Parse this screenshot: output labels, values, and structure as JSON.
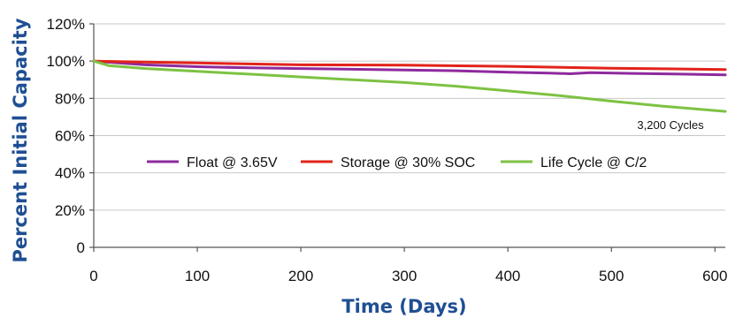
{
  "chart_data": {
    "type": "line",
    "xlabel": "Time (Days)",
    "ylabel": "Percent Initial Capacity",
    "xlim": [
      0,
      610
    ],
    "ylim": [
      0,
      120
    ],
    "x_ticks": [
      0,
      100,
      200,
      300,
      400,
      500,
      600
    ],
    "y_ticks": [
      0,
      20,
      40,
      60,
      80,
      100,
      120
    ],
    "x_tick_labels": [
      "0",
      "100",
      "200",
      "300",
      "400",
      "500",
      "600"
    ],
    "y_tick_labels": [
      "0",
      "20%",
      "40%",
      "60%",
      "80%",
      "100%",
      "120%"
    ],
    "grid": true,
    "legend_position": "center",
    "annotation": {
      "text": "3,200 Cycles",
      "x": 600,
      "y": 73
    },
    "series": [
      {
        "name": "Float @ 3.65V",
        "color": "#8e2a9e",
        "x": [
          0,
          50,
          100,
          150,
          200,
          250,
          300,
          350,
          400,
          440,
          460,
          480,
          520,
          560,
          610
        ],
        "y": [
          100,
          98,
          97,
          96.4,
          96,
          95.6,
          95.2,
          94.8,
          94,
          93.6,
          93.2,
          93.8,
          93.4,
          93.1,
          92.6
        ]
      },
      {
        "name": "Storage @ 30% SOC",
        "color": "#e2231a",
        "x": [
          0,
          100,
          200,
          300,
          400,
          500,
          610
        ],
        "y": [
          100,
          99,
          98,
          97.8,
          97.2,
          96.2,
          95.5
        ]
      },
      {
        "name": "Life Cycle @ C/2",
        "color": "#7dc242",
        "x": [
          0,
          15,
          50,
          100,
          150,
          200,
          250,
          300,
          350,
          400,
          450,
          500,
          550,
          610
        ],
        "y": [
          100,
          97.5,
          96,
          94.5,
          93,
          91.5,
          90,
          88.5,
          86.5,
          84,
          81.5,
          78.5,
          75.8,
          73
        ]
      }
    ]
  }
}
